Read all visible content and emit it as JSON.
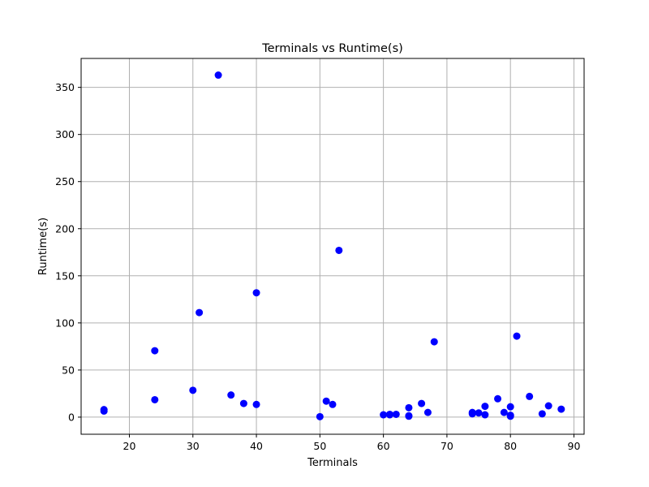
{
  "chart_data": {
    "type": "scatter",
    "title": "Terminals vs Runtime(s)",
    "xlabel": "Terminals",
    "ylabel": "Runtime(s)",
    "xlim": [
      12.4,
      91.6
    ],
    "ylim": [
      -18.15,
      380.7
    ],
    "xticks": [
      20,
      30,
      40,
      50,
      60,
      70,
      80,
      90
    ],
    "yticks": [
      0,
      50,
      100,
      150,
      200,
      250,
      300,
      350
    ],
    "grid": true,
    "marker_color": "#0000ff",
    "series": [
      {
        "points": [
          [
            16,
            8
          ],
          [
            16,
            6.5
          ],
          [
            24,
            70.5
          ],
          [
            24,
            18.5
          ],
          [
            30,
            28.5
          ],
          [
            31,
            111
          ],
          [
            34,
            363
          ],
          [
            36,
            23.5
          ],
          [
            38,
            14.5
          ],
          [
            40,
            132
          ],
          [
            40,
            13.5
          ],
          [
            50,
            0.5
          ],
          [
            51,
            17
          ],
          [
            52,
            13.5
          ],
          [
            53,
            177
          ],
          [
            60,
            2.5
          ],
          [
            61,
            3
          ],
          [
            61,
            2.5
          ],
          [
            62,
            3
          ],
          [
            64,
            10
          ],
          [
            64,
            1.5
          ],
          [
            64,
            1
          ],
          [
            66,
            14.5
          ],
          [
            67,
            5
          ],
          [
            68,
            80
          ],
          [
            74,
            5
          ],
          [
            74,
            3.5
          ],
          [
            75,
            4.5
          ],
          [
            76,
            11.5
          ],
          [
            76,
            2.5
          ],
          [
            78,
            19.5
          ],
          [
            79,
            5
          ],
          [
            80,
            11
          ],
          [
            80,
            2
          ],
          [
            80,
            1
          ],
          [
            81,
            86
          ],
          [
            83,
            22
          ],
          [
            85,
            3.5
          ],
          [
            86,
            12
          ],
          [
            88,
            8.5
          ]
        ]
      }
    ]
  }
}
